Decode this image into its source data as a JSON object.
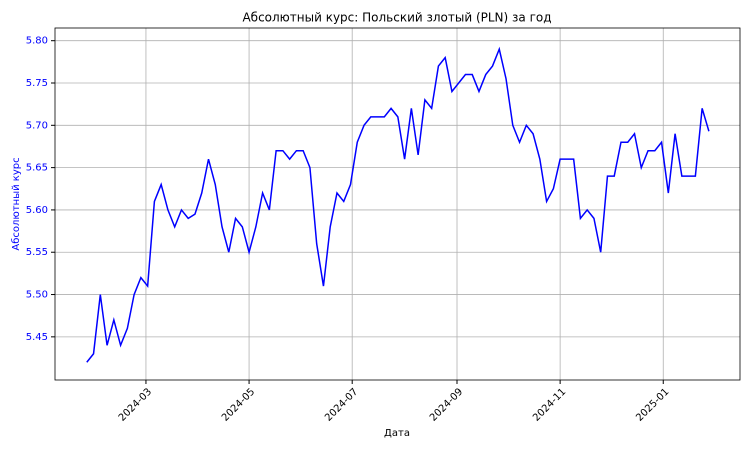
{
  "chart_data": {
    "type": "line",
    "title": "Абсолютный курс: Польский злотый (PLN) за год",
    "xlabel": "Дата",
    "ylabel": "Абсолютный курс",
    "color": "#0000ff",
    "grid": true,
    "values": [
      5.42,
      5.43,
      5.5,
      5.44,
      5.47,
      5.44,
      5.46,
      5.5,
      5.52,
      5.51,
      5.61,
      5.63,
      5.6,
      5.58,
      5.6,
      5.59,
      5.595,
      5.62,
      5.66,
      5.63,
      5.58,
      5.55,
      5.59,
      5.58,
      5.55,
      5.58,
      5.62,
      5.6,
      5.67,
      5.67,
      5.66,
      5.67,
      5.67,
      5.65,
      5.56,
      5.51,
      5.58,
      5.62,
      5.61,
      5.63,
      5.68,
      5.7,
      5.71,
      5.71,
      5.71,
      5.72,
      5.71,
      5.66,
      5.72,
      5.665,
      5.73,
      5.72,
      5.77,
      5.78,
      5.74,
      5.75,
      5.76,
      5.76,
      5.74,
      5.76,
      5.77,
      5.79,
      5.755,
      5.7,
      5.68,
      5.7,
      5.69,
      5.66,
      5.61,
      5.625,
      5.66,
      5.66,
      5.66,
      5.59,
      5.6,
      5.59,
      5.55,
      5.64,
      5.64,
      5.68,
      5.68,
      5.69,
      5.65,
      5.67,
      5.67,
      5.68,
      5.62,
      5.69,
      5.64,
      5.64,
      5.64,
      5.72,
      5.693
    ],
    "xlim": [
      -4.7,
      96.6
    ],
    "xticks": [
      {
        "value": 8.75,
        "label": "2024-03"
      },
      {
        "value": 24,
        "label": "2024-05"
      },
      {
        "value": 39.25,
        "label": "2024-07"
      },
      {
        "value": 54.75,
        "label": "2024-09"
      },
      {
        "value": 70,
        "label": "2024-11"
      },
      {
        "value": 85.25,
        "label": "2025-01"
      }
    ],
    "ylim": [
      5.399,
      5.815
    ],
    "yticks": [
      5.45,
      {
        "value": 5.5,
        "label": "5.50"
      },
      5.55,
      {
        "value": 5.6,
        "label": "5.60"
      },
      5.65,
      {
        "value": 5.7,
        "label": "5.70"
      },
      5.75,
      {
        "value": 5.8,
        "label": "5.80"
      }
    ]
  }
}
